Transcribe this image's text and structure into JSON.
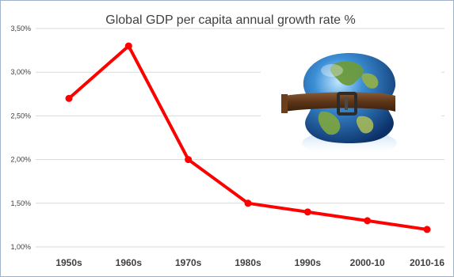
{
  "chart_data": {
    "type": "line",
    "title": "Global GDP per capita annual growth rate %",
    "categories": [
      "1950s",
      "1960s",
      "1970s",
      "1980s",
      "1990s",
      "2000-10",
      "2010-16"
    ],
    "series": [
      {
        "values": [
          2.7,
          3.3,
          2.0,
          1.5,
          1.4,
          1.3,
          1.2
        ]
      }
    ],
    "ylim": [
      1.0,
      3.5
    ],
    "yticks": [
      1.0,
      1.5,
      2.0,
      2.5,
      3.0,
      3.5
    ],
    "ytick_labels": [
      "1,00%",
      "1,50%",
      "2,00%",
      "2,50%",
      "3,00%",
      "3,50%"
    ],
    "grid": true,
    "line_color": "#ff0000",
    "grid_color": "#d9d9d9",
    "illustration": "globe-with-belt"
  }
}
